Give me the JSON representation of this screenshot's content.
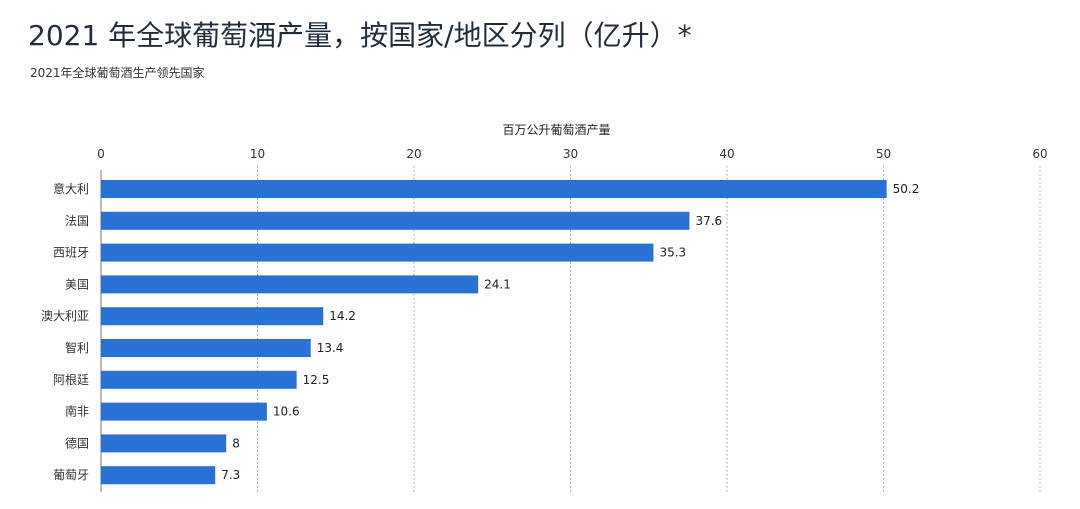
{
  "title": "2021 年全球葡萄酒产量，按国家/地区分列（亿升）*",
  "subtitle": "2021年全球葡萄酒生产领先国家",
  "chart_data": {
    "type": "bar",
    "orientation": "horizontal",
    "xlabel": "百万公升葡萄酒产量",
    "xlabel_position": "top",
    "xlim": [
      0,
      60
    ],
    "xticks": [
      0,
      10,
      20,
      30,
      40,
      50,
      60
    ],
    "grid": true,
    "bar_color": "#2872d6",
    "categories": [
      "意大利",
      "法国",
      "西班牙",
      "美国",
      "澳大利亚",
      "智利",
      "阿根廷",
      "南非",
      "德国",
      "葡萄牙"
    ],
    "values": [
      50.2,
      37.6,
      35.3,
      24.1,
      14.2,
      13.4,
      12.5,
      10.6,
      8,
      7.3
    ],
    "value_labels": [
      "50.2",
      "37.6",
      "35.3",
      "24.1",
      "14.2",
      "13.4",
      "12.5",
      "10.6",
      "8",
      "7.3"
    ]
  }
}
